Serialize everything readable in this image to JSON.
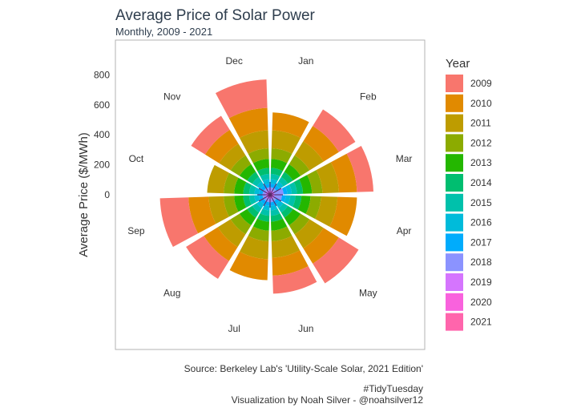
{
  "title": "Average Price of Solar Power",
  "subtitle": "Monthly, 2009 - 2021",
  "caption": {
    "source": "Source: Berkeley Lab's 'Utility-Scale Solar, 2021 Edition'",
    "hashtag": "#TidyTuesday",
    "credit": "Visualization by Noah Silver - @noahsilver12"
  },
  "chart_data": {
    "type": "bar",
    "coord": "polar",
    "ylabel": "Average Price ($/MWh)",
    "y_ticks": [
      0,
      200,
      400,
      600,
      800
    ],
    "y_tick_labels": [
      "0",
      "200",
      "400",
      "600",
      "800"
    ],
    "ylim": [
      0,
      1000
    ],
    "categories": [
      "Jan",
      "Feb",
      "Mar",
      "Apr",
      "May",
      "Jun",
      "Jul",
      "Aug",
      "Sep",
      "Oct",
      "Nov",
      "Dec"
    ],
    "legend": {
      "title": "Year",
      "position": "right"
    },
    "grid": false,
    "series": [
      {
        "name": "2009",
        "color": "#F8766D",
        "values": [
          0,
          130,
          110,
          0,
          155,
          120,
          0,
          140,
          190,
          0,
          110,
          190
        ]
      },
      {
        "name": "2010",
        "color": "#E18A00",
        "values": [
          120,
          120,
          120,
          130,
          120,
          120,
          140,
          110,
          135,
          0,
          110,
          150
        ]
      },
      {
        "name": "2011",
        "color": "#BE9C00",
        "values": [
          120,
          110,
          110,
          110,
          110,
          110,
          120,
          100,
          100,
          110,
          90,
          120
        ]
      },
      {
        "name": "2012",
        "color": "#8CAB00",
        "values": [
          70,
          70,
          70,
          70,
          70,
          70,
          70,
          70,
          70,
          70,
          70,
          70
        ]
      },
      {
        "name": "2013",
        "color": "#24B700",
        "values": [
          60,
          60,
          60,
          60,
          60,
          60,
          60,
          60,
          60,
          60,
          60,
          60
        ]
      },
      {
        "name": "2014",
        "color": "#00BE70",
        "values": [
          40,
          40,
          40,
          40,
          40,
          40,
          40,
          40,
          40,
          40,
          40,
          40
        ]
      },
      {
        "name": "2015",
        "color": "#00C1AB",
        "values": [
          35,
          35,
          35,
          35,
          35,
          35,
          35,
          35,
          35,
          35,
          35,
          35
        ]
      },
      {
        "name": "2016",
        "color": "#00BBDA",
        "values": [
          30,
          30,
          30,
          30,
          30,
          30,
          30,
          30,
          30,
          30,
          30,
          30
        ]
      },
      {
        "name": "2017",
        "color": "#00ACFC",
        "values": [
          25,
          25,
          25,
          25,
          25,
          25,
          25,
          25,
          25,
          25,
          25,
          25
        ]
      },
      {
        "name": "2018",
        "color": "#8B93FF",
        "values": [
          20,
          20,
          60,
          50,
          20,
          20,
          20,
          20,
          20,
          20,
          20,
          20
        ]
      },
      {
        "name": "2019",
        "color": "#D575FE",
        "values": [
          15,
          15,
          15,
          15,
          15,
          15,
          15,
          15,
          15,
          15,
          15,
          15
        ]
      },
      {
        "name": "2020",
        "color": "#F962DD",
        "values": [
          10,
          10,
          10,
          10,
          10,
          10,
          10,
          10,
          10,
          10,
          10,
          10
        ]
      },
      {
        "name": "2021",
        "color": "#FF65AC",
        "values": [
          5,
          5,
          5,
          5,
          5,
          5,
          5,
          5,
          5,
          5,
          5,
          5
        ]
      }
    ]
  }
}
